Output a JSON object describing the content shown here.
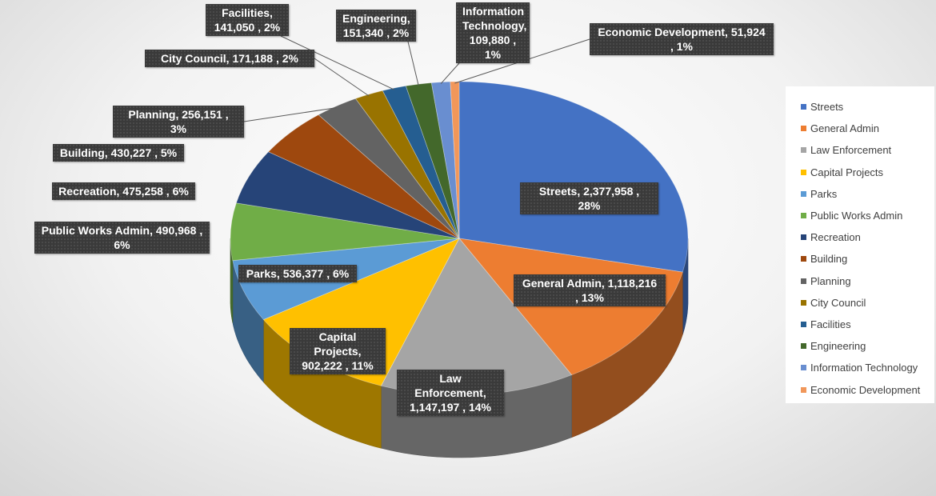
{
  "chart_data": {
    "type": "pie",
    "style": "3d",
    "title": "",
    "legend_position": "right",
    "label_format": "{name}, {value} , {percent}",
    "slices": [
      {
        "name": "Streets",
        "value": 2377958,
        "value_label": "2,377,958",
        "percent_label": "28%",
        "color": "#4472C4"
      },
      {
        "name": "General Admin",
        "value": 1118216,
        "value_label": "1,118,216",
        "percent_label": "13%",
        "color": "#ED7D31"
      },
      {
        "name": "Law Enforcement",
        "value": 1147197,
        "value_label": "1,147,197",
        "percent_label": "14%",
        "color": "#A5A5A5"
      },
      {
        "name": "Capital Projects",
        "value": 902222,
        "value_label": "902,222",
        "percent_label": "11%",
        "color": "#FFC000"
      },
      {
        "name": "Parks",
        "value": 536377,
        "value_label": "536,377",
        "percent_label": "6%",
        "color": "#5B9BD5"
      },
      {
        "name": "Public Works Admin",
        "value": 490968,
        "value_label": "490,968",
        "percent_label": "6%",
        "color": "#70AD47"
      },
      {
        "name": "Recreation",
        "value": 475258,
        "value_label": "475,258",
        "percent_label": "6%",
        "color": "#264478"
      },
      {
        "name": "Building",
        "value": 430227,
        "value_label": "430,227",
        "percent_label": "5%",
        "color": "#9E480E"
      },
      {
        "name": "Planning",
        "value": 256151,
        "value_label": "256,151",
        "percent_label": "3%",
        "color": "#636363"
      },
      {
        "name": "City Council",
        "value": 171188,
        "value_label": "171,188",
        "percent_label": "2%",
        "color": "#997300"
      },
      {
        "name": "Facilities",
        "value": 141050,
        "value_label": "141,050",
        "percent_label": "2%",
        "color": "#255E91"
      },
      {
        "name": "Engineering",
        "value": 151340,
        "value_label": "151,340",
        "percent_label": "2%",
        "color": "#43682B"
      },
      {
        "name": "Information Technology",
        "value": 109880,
        "value_label": "109,880",
        "percent_label": "1%",
        "color": "#698ED0"
      },
      {
        "name": "Economic Development",
        "value": 51924,
        "value_label": "51,924",
        "percent_label": "1%",
        "color": "#F1975A"
      }
    ]
  }
}
